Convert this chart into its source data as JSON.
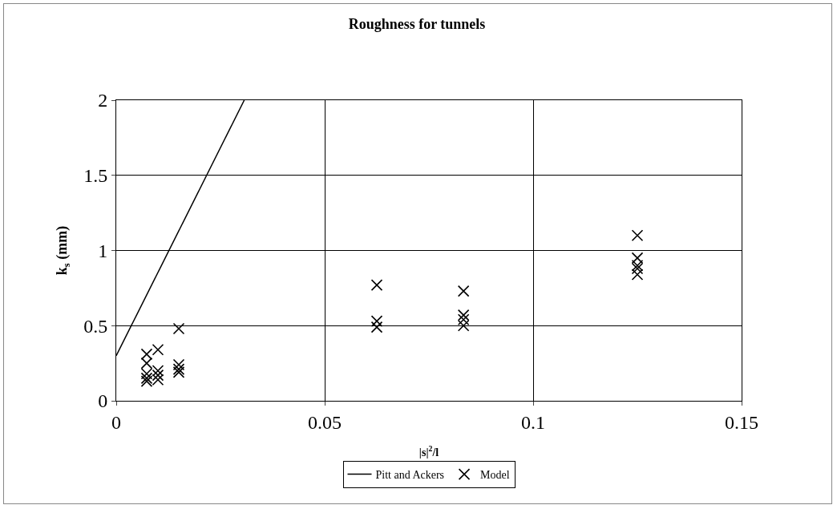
{
  "chart_data": {
    "type": "scatter",
    "title": "Roughness for tunnels",
    "xlabel": "|s|$^{2}$/l",
    "ylabel": "k$_{s}$ (mm)",
    "xlim": [
      0,
      0.15
    ],
    "xticks": [
      0,
      0.05,
      0.1,
      0.15
    ],
    "ylim": [
      0,
      2
    ],
    "yticks": [
      0,
      0.5,
      1,
      1.5,
      2
    ],
    "grid": true,
    "legend": "bottom",
    "series": [
      {
        "name": "Pitt and Ackers",
        "type": "line",
        "color": "#000000",
        "line_style": "solid",
        "marker": "none",
        "x": [
          0,
          0.0307
        ],
        "values": [
          0.3,
          2.0
        ]
      },
      {
        "name": "Model",
        "color": "#000000",
        "marker": "cross",
        "x": [
          0.0073,
          0.0073,
          0.0073,
          0.0073,
          0.0073,
          0.01,
          0.01,
          0.01,
          0.01,
          0.015,
          0.015,
          0.015,
          0.015,
          0.0625,
          0.0625,
          0.0625,
          0.0833,
          0.0833,
          0.0833,
          0.0833,
          0.125,
          0.125,
          0.125,
          0.125,
          0.125
        ],
        "values": [
          0.31,
          0.25,
          0.18,
          0.15,
          0.13,
          0.34,
          0.2,
          0.17,
          0.14,
          0.48,
          0.24,
          0.21,
          0.19,
          0.77,
          0.53,
          0.49,
          0.73,
          0.57,
          0.54,
          0.5,
          1.1,
          0.95,
          0.9,
          0.88,
          0.84
        ]
      }
    ]
  }
}
